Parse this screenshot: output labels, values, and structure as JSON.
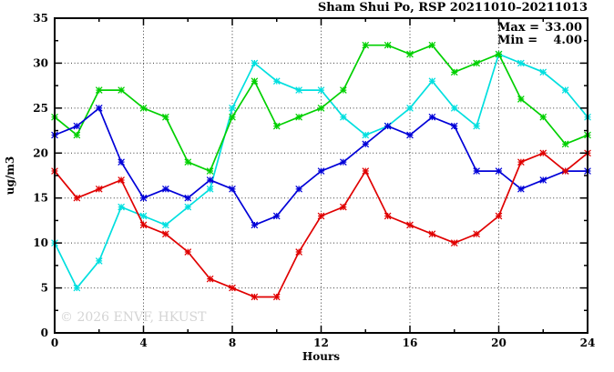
{
  "chart_data": {
    "type": "line",
    "title": "Sham Shui Po, RSP 20211010–20211013",
    "xlabel": "Hours",
    "ylabel": "ug/m3",
    "watermark": "© 2026 ENVF, HKUST",
    "legend": {
      "position": "top-right-inside",
      "entries": [
        {
          "label": "Max =",
          "value": "33.00"
        },
        {
          "label": "Min =",
          "value": "4.00"
        }
      ]
    },
    "xlim": [
      0,
      24
    ],
    "ylim": [
      0,
      35
    ],
    "xticks_major": [
      0,
      4,
      8,
      12,
      16,
      20,
      24
    ],
    "xticks_minor": [
      2,
      6,
      10,
      14,
      18,
      22
    ],
    "yticks_major": [
      0,
      5,
      10,
      15,
      20,
      25,
      30,
      35
    ],
    "yticks_minor": [
      2.5,
      7.5,
      12.5,
      17.5,
      22.5,
      27.5,
      32.5
    ],
    "xgrid": [
      4,
      8,
      12,
      16,
      20
    ],
    "ygrid": [
      5,
      10,
      15,
      20,
      25,
      30
    ],
    "grid_on": true,
    "x": [
      0,
      1,
      2,
      3,
      4,
      5,
      6,
      7,
      8,
      9,
      10,
      11,
      12,
      13,
      14,
      15,
      16,
      17,
      18,
      19,
      20,
      21,
      22,
      23,
      24
    ],
    "series": [
      {
        "name": "day-cyan",
        "color": "#00dfdf",
        "values": [
          10,
          5,
          8,
          14,
          13,
          12,
          14,
          16,
          25,
          30,
          28,
          27,
          27,
          24,
          22,
          23,
          25,
          28,
          25,
          23,
          31,
          30,
          29,
          27,
          24
        ]
      },
      {
        "name": "day-green",
        "color": "#00d000",
        "values": [
          24,
          22,
          27,
          27,
          25,
          24,
          19,
          18,
          24,
          28,
          23,
          24,
          25,
          27,
          32,
          32,
          31,
          32,
          29,
          30,
          31,
          26,
          24,
          21,
          22
        ]
      },
      {
        "name": "day-blue",
        "color": "#0000d8",
        "values": [
          22,
          23,
          25,
          19,
          15,
          16,
          15,
          17,
          16,
          12,
          13,
          16,
          18,
          19,
          21,
          23,
          22,
          24,
          23,
          18,
          18,
          16,
          17,
          18,
          18
        ]
      },
      {
        "name": "day-red",
        "color": "#e00000",
        "values": [
          18,
          15,
          16,
          17,
          12,
          11,
          9,
          6,
          5,
          4,
          4,
          9,
          13,
          14,
          18,
          13,
          12,
          11,
          10,
          11,
          13,
          19,
          20,
          18,
          20
        ]
      }
    ]
  },
  "style_colors": {
    "axis": "#000000",
    "grid": "#3a3a3a",
    "text": "#000000",
    "watermark": "#d4d4d4"
  }
}
